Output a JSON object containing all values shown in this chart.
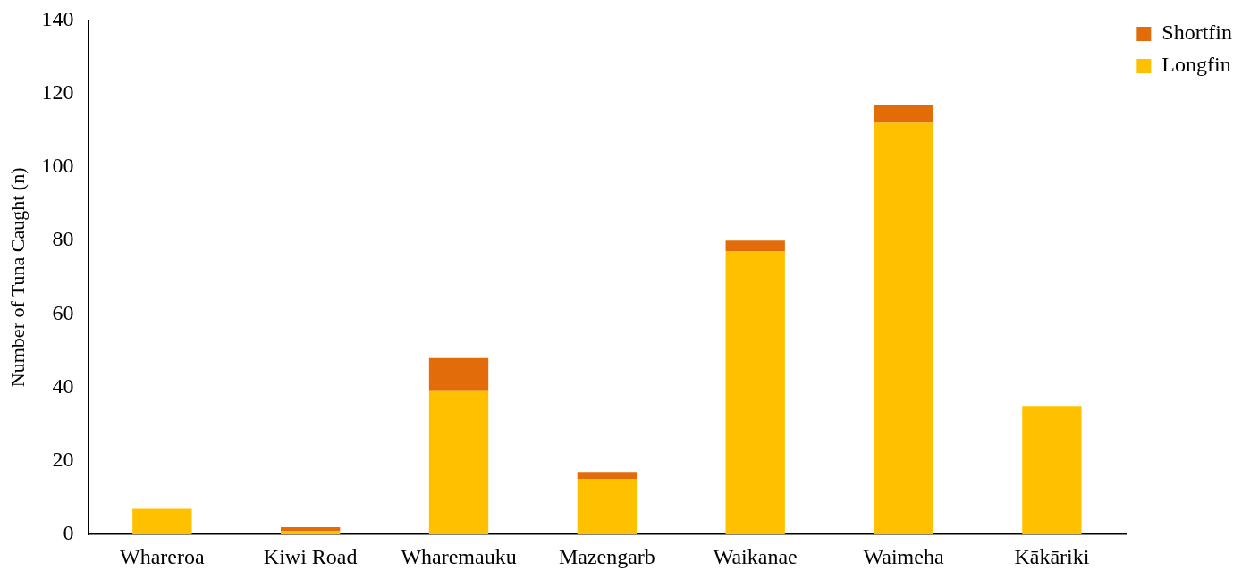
{
  "chart_data": {
    "type": "bar",
    "stacked": true,
    "ylabel": "Number of Tuna Caught (n)",
    "categories": [
      "Whareroa",
      "Kiwi Road",
      "Wharemauku",
      "Mazengarb",
      "Waikanae",
      "Waimeha",
      "Kākāriki"
    ],
    "series": [
      {
        "name": "Longfin",
        "color": "#ffc000",
        "values": [
          7,
          1,
          39,
          15,
          77,
          112,
          35
        ]
      },
      {
        "name": "Shortfin",
        "color": "#e36c0a",
        "values": [
          0,
          1,
          9,
          2,
          3,
          5,
          0
        ]
      }
    ],
    "ylim": [
      0,
      140
    ],
    "yticks": [
      0,
      20,
      40,
      60,
      80,
      100,
      120,
      140
    ],
    "grid": false,
    "legend": "top right"
  }
}
